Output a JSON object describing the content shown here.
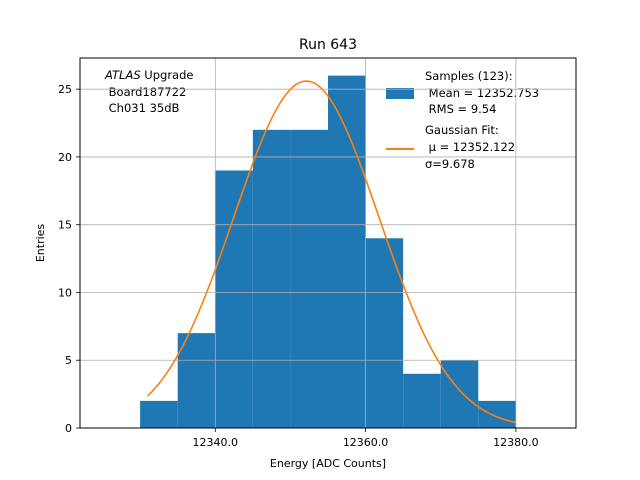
{
  "chart_data": {
    "type": "bar",
    "title": "Run 643",
    "xlabel": "Energy [ADC Counts]",
    "ylabel": "Entries",
    "xlim": [
      12322.0,
      12388.0
    ],
    "ylim": [
      0,
      27.3
    ],
    "xticks": [
      12340.0,
      12360.0,
      12380.0
    ],
    "yticks": [
      0,
      5,
      10,
      15,
      20,
      25
    ],
    "grid": true,
    "bin_edges": [
      12330,
      12335,
      12340,
      12345,
      12350,
      12355,
      12360,
      12365,
      12370,
      12375,
      12380
    ],
    "counts": [
      2,
      7,
      19,
      22,
      22,
      26,
      14,
      4,
      5,
      2
    ],
    "fit": {
      "name": "Gaussian Fit:",
      "mu": 12352.122,
      "sigma": 9.678,
      "amplitude": 25.6,
      "x_range": [
        12331.0,
        12380.0
      ]
    },
    "annotation": {
      "italic": "ATLAS",
      "line1_rest": " Upgrade",
      "line2": " Board187722",
      "line3": " Ch031 35dB"
    },
    "legend": {
      "placement": "top-right",
      "samples_line1": "Samples (123):",
      "samples_line2": " Mean = 12352.753",
      "samples_line3": " RMS = 9.54",
      "fit_line1": "Gaussian Fit:",
      "fit_line2": " μ = 12352.122",
      "fit_line3": "σ=9.678"
    },
    "colors": {
      "bars": "#1f77b4",
      "fit": "#ff7f0e",
      "grid": "#b0b0b0"
    }
  }
}
